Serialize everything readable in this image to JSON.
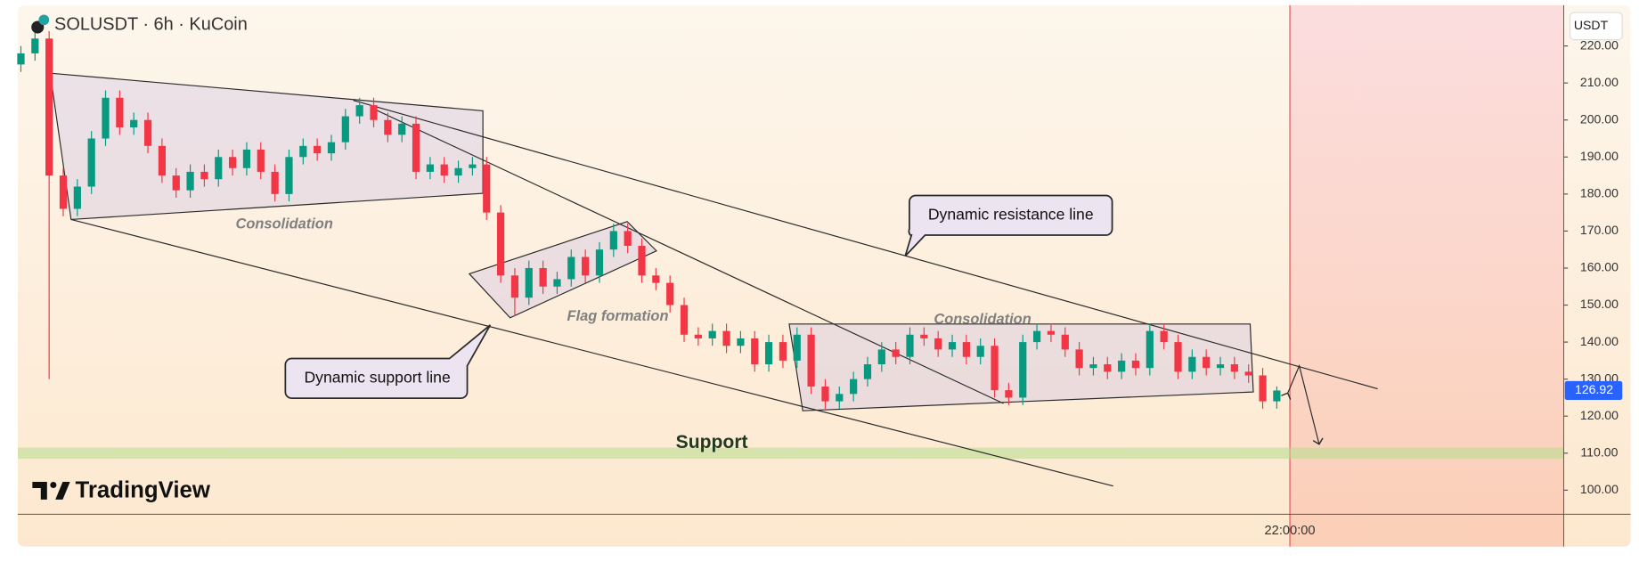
{
  "chart_data": {
    "type": "candlestick",
    "title": "SOLUSDT · 6h · KuCoin",
    "currency": "USDT",
    "brand": "TradingView",
    "time_label": "22:00:00",
    "up_color": "#089981",
    "down_color": "#f23645",
    "ylim": [
      93.5,
      231
    ],
    "yticks": [
      {
        "value": 100,
        "label": "100.00"
      },
      {
        "value": 110,
        "label": "110.00"
      },
      {
        "value": 120,
        "label": "120.00"
      },
      {
        "value": 130,
        "label": "130.00"
      },
      {
        "value": 140,
        "label": "140.00"
      },
      {
        "value": 150,
        "label": "150.00"
      },
      {
        "value": 160,
        "label": "160.00"
      },
      {
        "value": 170,
        "label": "170.00"
      },
      {
        "value": 180,
        "label": "180.00"
      },
      {
        "value": 190,
        "label": "190.00"
      },
      {
        "value": 200,
        "label": "200.00"
      },
      {
        "value": 210,
        "label": "210.00"
      },
      {
        "value": 220,
        "label": "220.00"
      }
    ],
    "support_zone": [
      108.5,
      111.5
    ],
    "open": [
      215,
      218,
      222,
      185,
      176,
      182,
      195,
      206,
      198,
      200,
      193,
      185,
      181,
      186,
      184,
      190,
      187,
      192,
      186,
      180,
      190,
      193,
      191,
      194,
      201,
      204,
      200,
      196,
      199,
      186,
      188,
      185,
      187,
      188,
      175,
      158,
      152,
      160,
      155,
      157,
      163,
      158,
      165,
      170,
      166,
      158,
      156,
      150,
      142,
      141,
      143,
      139,
      141,
      134,
      140,
      135,
      142,
      128,
      124,
      126,
      130,
      134,
      138,
      136,
      142,
      141,
      138,
      140,
      136,
      139,
      127,
      125,
      140,
      143,
      142,
      138,
      133,
      134,
      132,
      135,
      133,
      143,
      140,
      132,
      136,
      133,
      134,
      132,
      131,
      124
    ],
    "high": [
      220,
      224,
      224,
      187,
      184,
      197,
      208,
      208,
      202,
      202,
      195,
      187,
      188,
      188,
      192,
      192,
      194,
      194,
      188,
      192,
      195,
      195,
      196,
      203,
      206,
      206,
      202,
      201,
      201,
      190,
      190,
      189,
      190,
      190,
      177,
      160,
      162,
      162,
      159,
      165,
      165,
      167,
      172,
      172,
      168,
      160,
      158,
      152,
      144,
      145,
      145,
      143,
      143,
      142,
      142,
      144,
      144,
      130,
      128,
      132,
      136,
      140,
      140,
      144,
      144,
      143,
      142,
      142,
      141,
      141,
      129,
      142,
      145,
      145,
      144,
      140,
      136,
      136,
      137,
      137,
      145,
      145,
      142,
      138,
      138,
      136,
      136,
      134,
      133,
      128
    ],
    "low": [
      213,
      216,
      130,
      174,
      174,
      180,
      193,
      196,
      196,
      191,
      183,
      179,
      179,
      182,
      182,
      185,
      185,
      184,
      178,
      178,
      188,
      189,
      189,
      192,
      199,
      198,
      194,
      194,
      184,
      184,
      183,
      183,
      185,
      173,
      156,
      147,
      150,
      153,
      153,
      155,
      156,
      156,
      163,
      164,
      156,
      154,
      148,
      140,
      139,
      139,
      137,
      137,
      132,
      132,
      133,
      133,
      126,
      122,
      122,
      124,
      128,
      132,
      134,
      134,
      139,
      136,
      136,
      134,
      134,
      125,
      123,
      123,
      138,
      140,
      136,
      131,
      131,
      130,
      130,
      131,
      131,
      138,
      130,
      130,
      131,
      131,
      130,
      129,
      122,
      122
    ],
    "close": [
      218,
      222,
      185,
      176,
      182,
      195,
      206,
      198,
      200,
      193,
      185,
      181,
      186,
      184,
      190,
      187,
      192,
      186,
      180,
      190,
      193,
      191,
      194,
      201,
      204,
      200,
      196,
      199,
      186,
      188,
      185,
      187,
      188,
      175,
      158,
      152,
      160,
      155,
      157,
      163,
      158,
      165,
      170,
      166,
      158,
      156,
      150,
      142,
      141,
      143,
      139,
      141,
      134,
      140,
      135,
      142,
      128,
      124,
      126,
      130,
      134,
      138,
      136,
      142,
      141,
      138,
      140,
      136,
      139,
      127,
      125,
      140,
      143,
      142,
      138,
      133,
      134,
      132,
      135,
      133,
      143,
      140,
      132,
      136,
      133,
      134,
      132,
      131,
      124,
      126.92
    ],
    "annotations": {
      "consolidation_1": "Consolidation",
      "flag": "Flag formation",
      "consolidation_2": "Consolidation",
      "support": "Support",
      "resistance_callout": "Dynamic resistance line",
      "support_callout": "Dynamic support line"
    }
  }
}
